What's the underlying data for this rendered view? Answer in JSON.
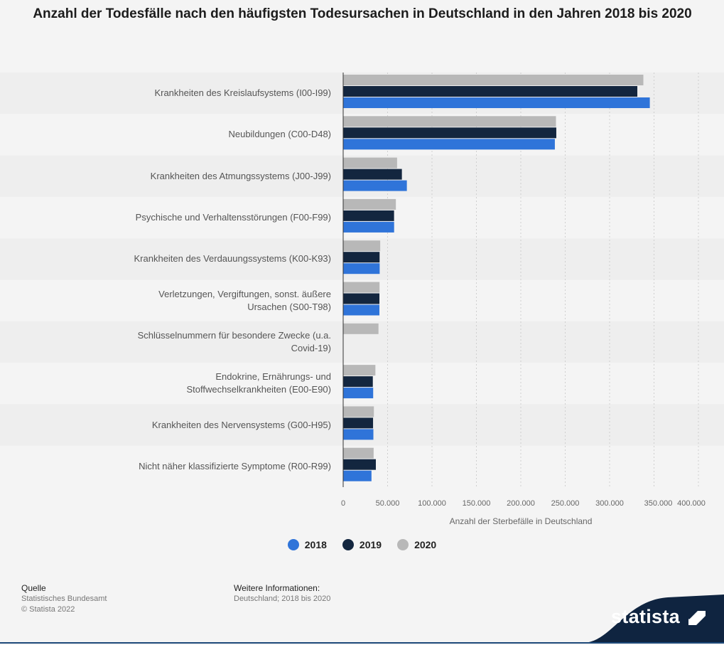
{
  "title": "Anzahl der Todesfälle nach den häufigsten Todesursachen in Deutschland in den Jahren 2018 bis 2020",
  "chart_data": {
    "type": "bar",
    "orientation": "horizontal",
    "categories": [
      "Krankheiten des Kreislaufsystems (I00-I99)",
      "Neubildungen (C00-D48)",
      "Krankheiten des Atmungssystems (J00-J99)",
      "Psychische und Verhaltensstörungen (F00-F99)",
      "Krankheiten des Verdauungssystems (K00-K93)",
      "Verletzungen, Vergiftungen, sonst. äußere Ursachen (S00-T98)",
      "Schlüsselnummern für besondere Zwecke (u.a. Covid-19)",
      "Endokrine, Ernährungs- und Stoffwechselkrankheiten (E00-E90)",
      "Krankheiten des Nervensystems (G00-H95)",
      "Nicht näher klassifizierte Symptome (R00-R99)"
    ],
    "series": [
      {
        "name": "2020",
        "color": "#b8b8b8",
        "values": [
          338001,
          239591,
          60718,
          59325,
          41717,
          40969,
          39758,
          36281,
          34561,
          34298
        ]
      },
      {
        "name": "2019",
        "color": "#13263f",
        "values": [
          331211,
          239965,
          66109,
          57290,
          41013,
          40812,
          0,
          33380,
          33650,
          36791
        ]
      },
      {
        "name": "2018",
        "color": "#2f74d9",
        "values": [
          345274,
          238345,
          71706,
          57358,
          41107,
          40814,
          0,
          33785,
          34012,
          31874
        ]
      }
    ],
    "xlabel": "Anzahl der Sterbefälle in Deutschland",
    "ylabel": "",
    "xlim": [
      0,
      400000
    ],
    "xticks": [
      0,
      50000,
      100000,
      150000,
      200000,
      250000,
      300000,
      350000,
      400000
    ],
    "xtick_labels": [
      "0",
      "50.000",
      "100.000",
      "150.000",
      "200.000",
      "250.000",
      "300.000",
      "350.000",
      "400.000"
    ],
    "grid": true,
    "legend": [
      "2018",
      "2019",
      "2020"
    ],
    "legend_position": "bottom-center"
  },
  "labels": [
    [
      "Krankheiten des Kreislaufsystems (I00-I99)"
    ],
    [
      "Neubildungen (C00-D48)"
    ],
    [
      "Krankheiten des Atmungssystems (J00-J99)"
    ],
    [
      "Psychische und Verhaltensstörungen (F00-F99)"
    ],
    [
      "Krankheiten des Verdauungssystems (K00-K93)"
    ],
    [
      "Verletzungen, Vergiftungen, sonst. äußere",
      "Ursachen (S00-T98)"
    ],
    [
      "Schlüsselnummern für besondere Zwecke (u.a.",
      "Covid-19)"
    ],
    [
      "Endokrine, Ernährungs- und",
      "Stoffwechselkrankheiten (E00-E90)"
    ],
    [
      "Krankheiten des Nervensystems (G00-H95)"
    ],
    [
      "Nicht näher klassifizierte Symptome (R00-R99)"
    ]
  ],
  "legend": {
    "items": [
      {
        "label": "2018",
        "color": "#2f74d9"
      },
      {
        "label": "2019",
        "color": "#13263f"
      },
      {
        "label": "2020",
        "color": "#b8b8b8"
      }
    ]
  },
  "source": {
    "heading": "Quelle",
    "line1": "Statistisches Bundesamt",
    "line2": "© Statista 2022"
  },
  "info": {
    "heading": "Weitere Informationen:",
    "line1": "Deutschland; 2018 bis 2020"
  },
  "brand": {
    "name": "statista",
    "color": "#1e4a7a"
  }
}
